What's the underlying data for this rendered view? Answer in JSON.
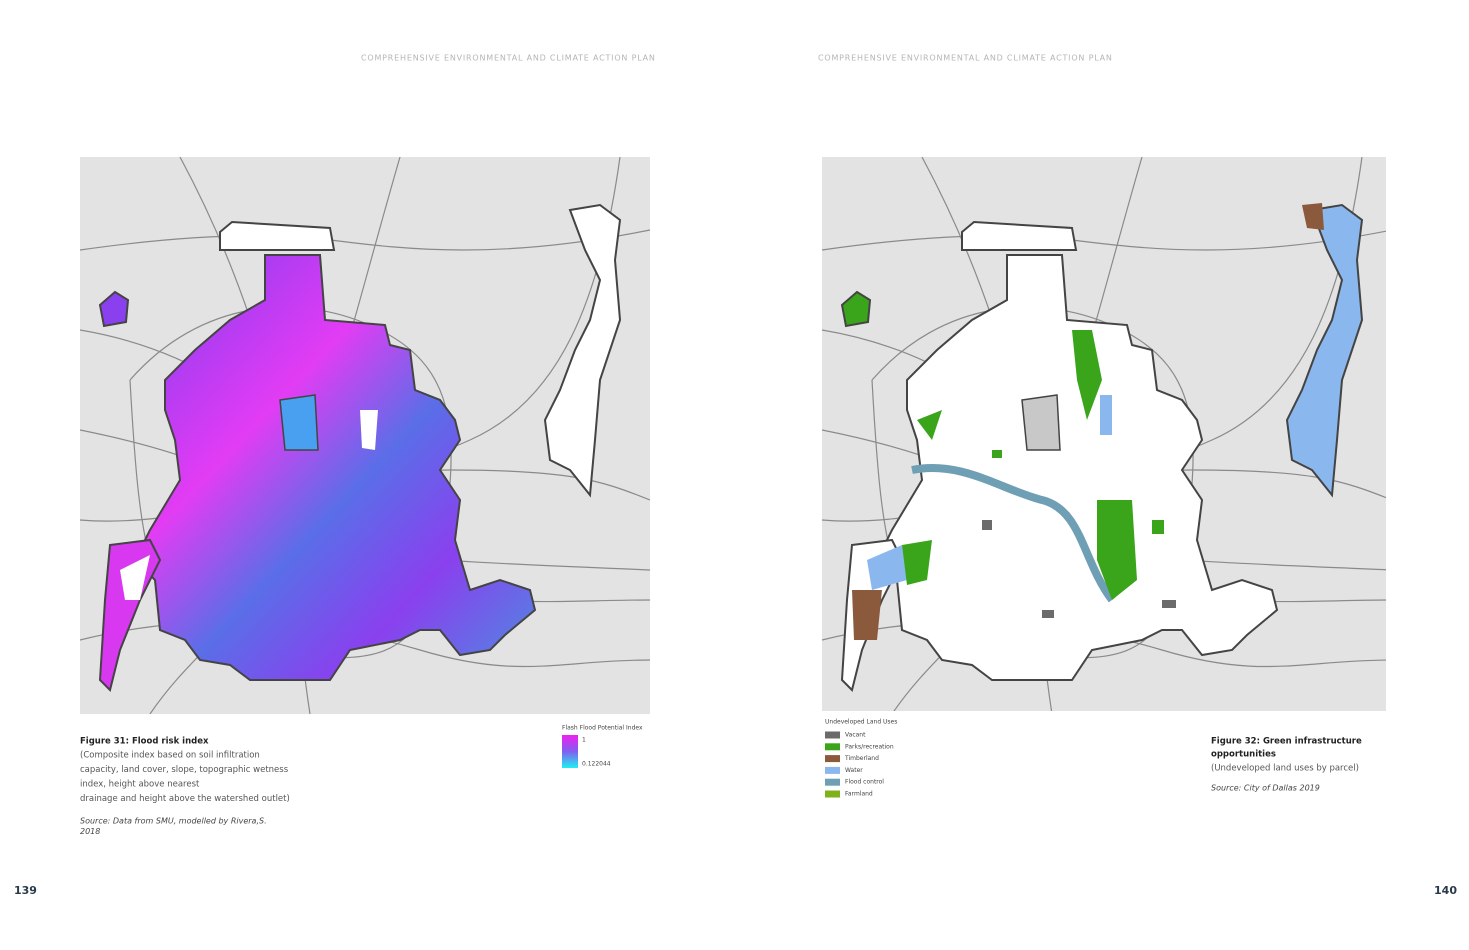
{
  "header": {
    "left": "COMPREHENSIVE ENVIRONMENTAL AND CLIMATE ACTION PLAN",
    "right": "COMPREHENSIVE ENVIRONMENTAL AND CLIMATE ACTION PLAN"
  },
  "figure_31": {
    "title": "Figure 31: Flood risk index",
    "description": [
      "(Composite index based on soil infiltration",
      "capacity, land cover, slope, topographic wetness",
      "index, height above nearest",
      "drainage and height above the watershed outlet)"
    ],
    "source": [
      "Source: Data from SMU, modelled by Rivera,S.",
      "2018"
    ],
    "legend": {
      "title": "Flash Flood Potential Index",
      "max": 1,
      "min": 0.122044
    }
  },
  "figure_32": {
    "title": [
      "Figure 32: Green infrastructure",
      "opportunities"
    ],
    "description": "(Undeveloped land uses by parcel)",
    "source": "Source: City of Dallas 2019",
    "legend": {
      "title": "Undeveloped Land Uses",
      "items": [
        {
          "label": "Vacant",
          "color": "#6b6b6b"
        },
        {
          "label": "Parks/recreation",
          "color": "#3aa51b"
        },
        {
          "label": "Timberland",
          "color": "#8b5a3c"
        },
        {
          "label": "Water",
          "color": "#8ab8ee"
        },
        {
          "label": "Flood control",
          "color": "#6f9fb5"
        },
        {
          "label": "Farmland",
          "color": "#7db21a"
        }
      ]
    }
  },
  "page_numbers": {
    "left": "139",
    "right": "140"
  }
}
